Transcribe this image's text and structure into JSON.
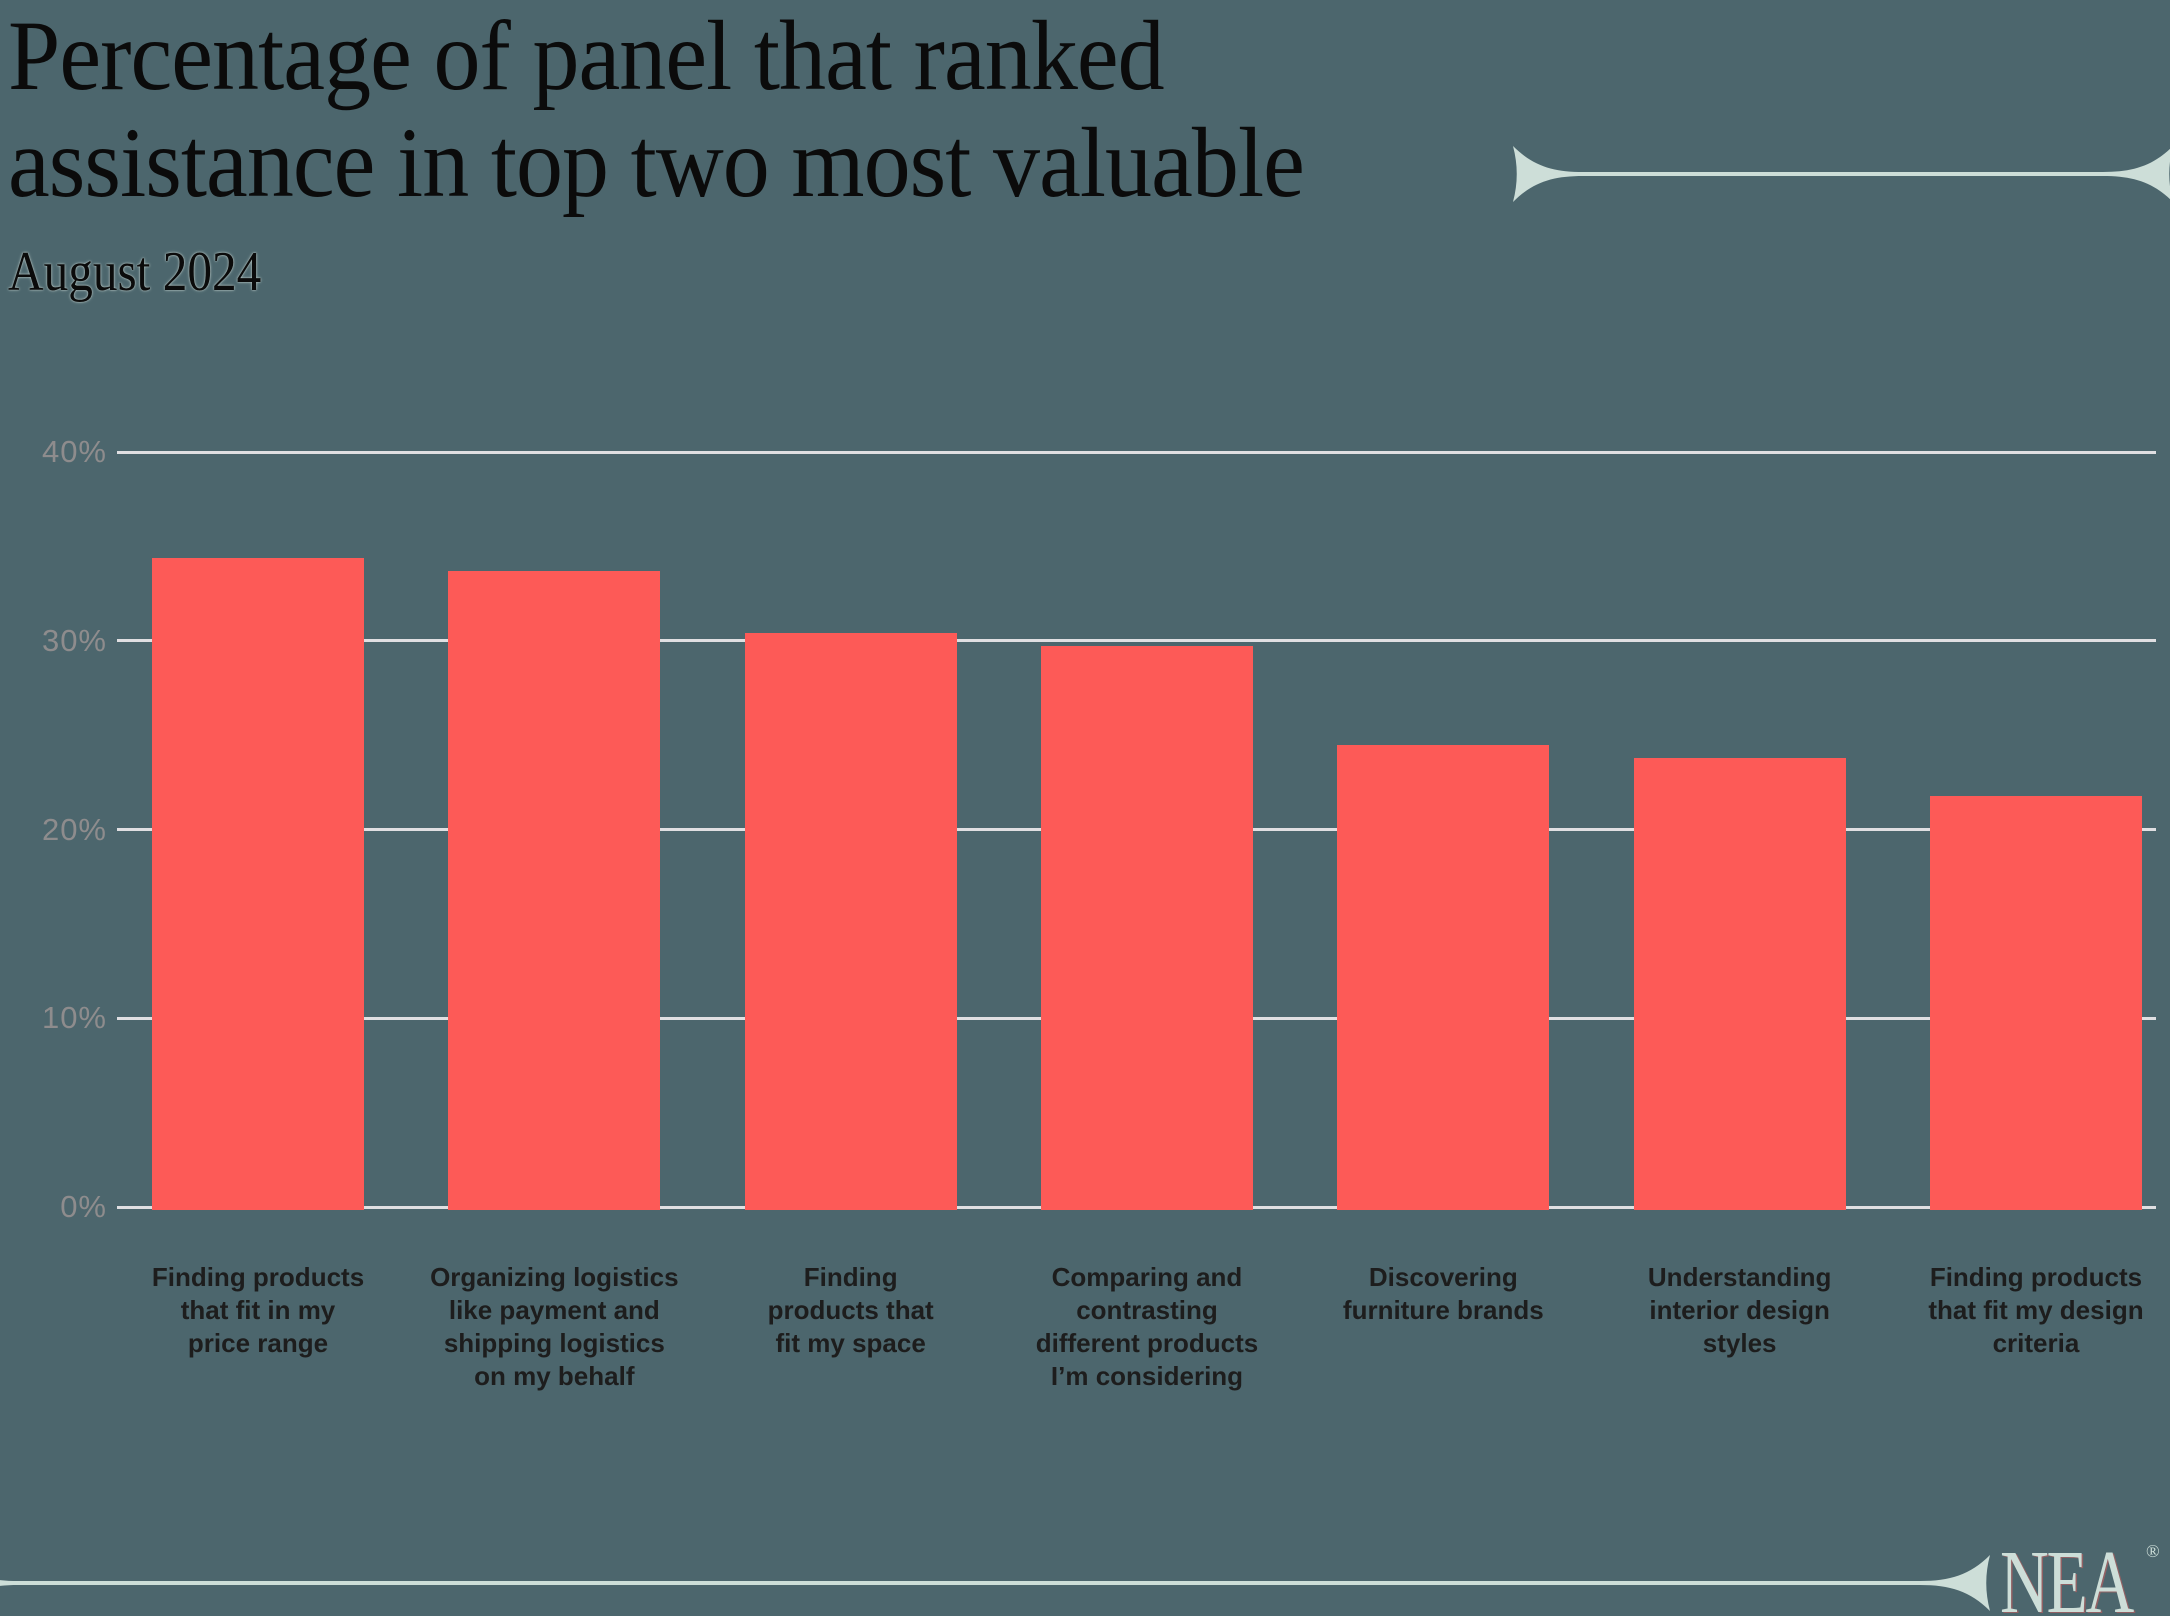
{
  "header": {
    "title_line1": "Percentage of panel that ranked",
    "title_line2": "assistance in top two most valuable",
    "subtitle": "August 2024"
  },
  "footer": {
    "logo_text": "NEA",
    "registered_mark": "®"
  },
  "colors": {
    "background": "#4c666d",
    "bar": "#fd5a57",
    "gridline": "#e0dfe2",
    "axis_label": "#8e8c8d",
    "category_label": "#1d1d1d",
    "title": "#0b0b0b",
    "accent_rule": "#cdded8"
  },
  "chart_data": {
    "type": "bar",
    "title": "Percentage of panel that ranked assistance in top two most valuable",
    "subtitle": "August 2024",
    "categories": [
      "Finding products\nthat fit in my\nprice range",
      "Organizing logistics\nlike payment and\nshipping logistics\non my behalf",
      "Finding\nproducts that\nfit my space",
      "Comparing and\ncontrasting\ndifferent products\nI’m considering",
      "Discovering\nfurniture brands",
      "Understanding\ninterior design\nstyles",
      "Finding products\nthat fit my design\ncriteria"
    ],
    "values": [
      34.4,
      33.7,
      30.4,
      29.7,
      24.5,
      23.8,
      21.8
    ],
    "unit": "%",
    "xlabel": "",
    "ylabel": "",
    "ylim": [
      0,
      40
    ],
    "yticks": [
      0,
      10,
      20,
      30,
      40
    ],
    "ytick_labels": [
      "0%",
      "10%",
      "20%",
      "30%",
      "40%"
    ],
    "grid": "horizontal",
    "legend": "none",
    "bar_color": "#fd5a57"
  }
}
